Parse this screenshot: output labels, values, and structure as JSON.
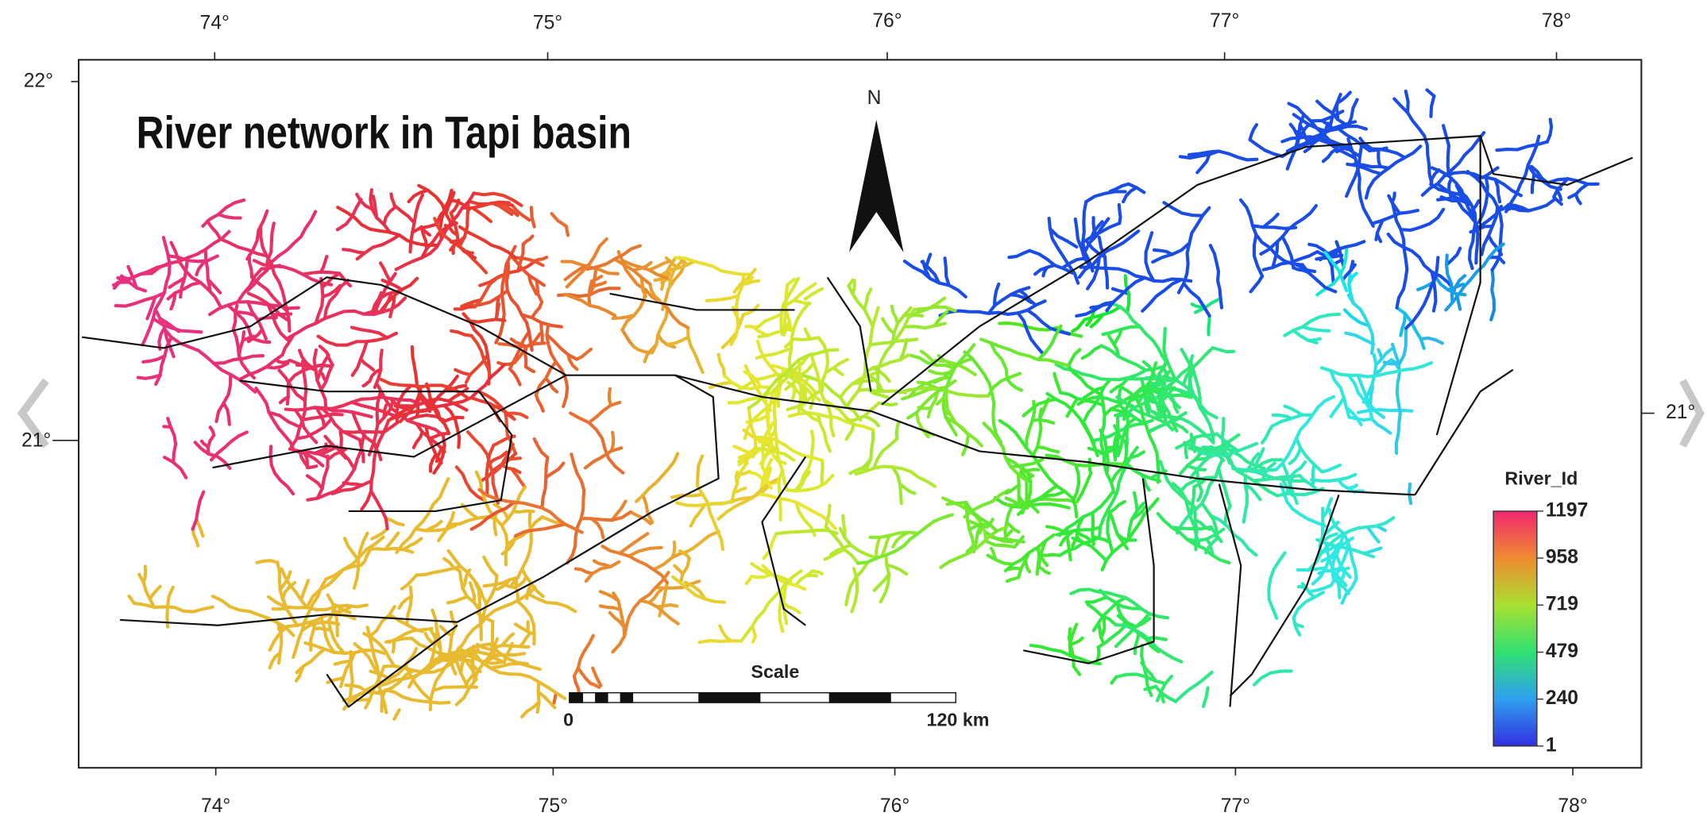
{
  "map": {
    "title": "River network in Tapi basin",
    "lon_labels_top": [
      "74°",
      "75°",
      "76°",
      "77°",
      "78°"
    ],
    "lon_labels_bottom": [
      "74°",
      "75°",
      "76°",
      "77°",
      "78°"
    ],
    "lat_labels_left": [
      "22°",
      "21°"
    ],
    "lat_labels_right": [
      "21°"
    ],
    "north": "N",
    "scale": {
      "title": "Scale",
      "start": "0",
      "end": "120 km"
    },
    "legend": {
      "title": "River_Id",
      "ticks": [
        1197,
        958,
        719,
        479,
        240,
        1
      ]
    }
  }
}
